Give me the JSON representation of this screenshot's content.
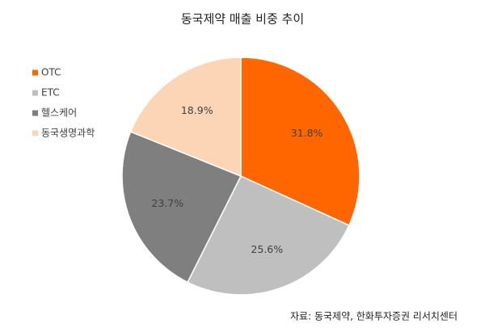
{
  "chart_data": {
    "type": "pie",
    "title": "동국제약 매출 비중 추이",
    "categories": [
      "OTC",
      "ETC",
      "헬스케어",
      "동국생명과학"
    ],
    "values": [
      31.8,
      25.6,
      23.7,
      18.9
    ],
    "value_labels": [
      "31.8%",
      "25.6%",
      "23.7%",
      "18.9%"
    ],
    "colors": [
      "#ff6600",
      "#bfbfbf",
      "#7f7f7f",
      "#fbd5b5"
    ],
    "legend": "left",
    "source": "자료: 동국제약, 한화투자증권 리서치센터"
  }
}
